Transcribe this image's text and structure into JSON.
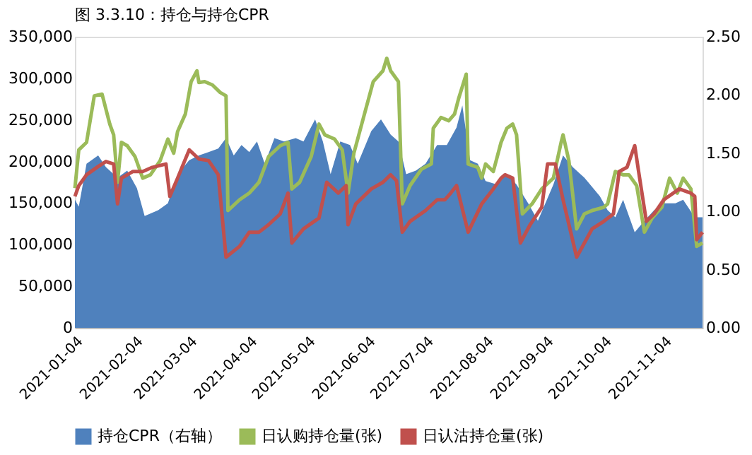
{
  "chart_data": {
    "type": "line",
    "title": "图 3.3.10：持仓与持仓CPR",
    "xlim": [
      "2021-01-04",
      "2021-11-24"
    ],
    "xticks": [
      "2021-01-04",
      "2021-02-04",
      "2021-03-04",
      "2021-04-04",
      "2021-05-04",
      "2021-06-04",
      "2021-07-04",
      "2021-08-04",
      "2021-09-04",
      "2021-10-04",
      "2021-11-04"
    ],
    "ylim": [
      0,
      350000
    ],
    "yticks": [
      0,
      {
        "value": 50000,
        "label": "50,000"
      },
      {
        "value": 100000,
        "label": "100,000"
      },
      {
        "value": 150000,
        "label": "150,000"
      },
      {
        "value": 200000,
        "label": "200,000"
      },
      {
        "value": 250000,
        "label": "250,000"
      },
      {
        "value": 300000,
        "label": "300,000"
      },
      {
        "value": 350000,
        "label": "350,000"
      }
    ],
    "y2lim": [
      0,
      2.5
    ],
    "y2ticks": [
      {
        "value": 0,
        "label": "0.00"
      },
      {
        "value": 0.5,
        "label": "0.50"
      },
      {
        "value": 1,
        "label": "1.00"
      },
      {
        "value": 1.5,
        "label": "1.50"
      },
      {
        "value": 2,
        "label": "2.00"
      },
      {
        "value": 2.5,
        "label": "2.50"
      }
    ],
    "grid": false,
    "legend": "bottom",
    "series": [
      {
        "name": "持仓CPR（右轴）",
        "type": "area",
        "axis": "y2",
        "color": "#4f81bd",
        "x": [
          "2021-01-04",
          "2021-01-06",
          "2021-01-10",
          "2021-01-16",
          "2021-01-20",
          "2021-01-26",
          "2021-01-31",
          "2021-02-05",
          "2021-02-09",
          "2021-02-16",
          "2021-02-21",
          "2021-02-26",
          "2021-03-04",
          "2021-03-09",
          "2021-03-14",
          "2021-03-19",
          "2021-03-23",
          "2021-03-27",
          "2021-03-31",
          "2021-04-04",
          "2021-04-08",
          "2021-04-12",
          "2021-04-17",
          "2021-04-22",
          "2021-04-28",
          "2021-05-02",
          "2021-05-08",
          "2021-05-12",
          "2021-05-16",
          "2021-05-21",
          "2021-05-26",
          "2021-05-30",
          "2021-06-06",
          "2021-06-11",
          "2021-06-16",
          "2021-06-20",
          "2021-06-24",
          "2021-06-29",
          "2021-07-04",
          "2021-07-10",
          "2021-07-15",
          "2021-07-20",
          "2021-07-23",
          "2021-07-27",
          "2021-07-31",
          "2021-08-04",
          "2021-08-10",
          "2021-08-15",
          "2021-08-20",
          "2021-08-26",
          "2021-08-31",
          "2021-09-08",
          "2021-09-13",
          "2021-09-18",
          "2021-09-24",
          "2021-10-02",
          "2021-10-06",
          "2021-10-10",
          "2021-10-14",
          "2021-10-20",
          "2021-10-25",
          "2021-10-30",
          "2021-11-04",
          "2021-11-10",
          "2021-11-14",
          "2021-11-20",
          "2021-11-24"
        ],
        "values": [
          1.1,
          1.04,
          1.41,
          1.48,
          1.38,
          1.29,
          1.35,
          1.2,
          0.96,
          1.01,
          1.07,
          1.32,
          1.44,
          1.48,
          1.51,
          1.54,
          1.63,
          1.48,
          1.57,
          1.51,
          1.6,
          1.41,
          1.63,
          1.6,
          1.63,
          1.6,
          1.79,
          1.6,
          1.32,
          1.6,
          1.57,
          1.41,
          1.69,
          1.79,
          1.66,
          1.6,
          1.32,
          1.35,
          1.41,
          1.57,
          1.57,
          1.72,
          1.91,
          1.44,
          1.41,
          1.26,
          1.23,
          1.32,
          1.23,
          1.07,
          0.92,
          1.23,
          1.48,
          1.38,
          1.29,
          1.13,
          1.01,
          0.95,
          1.1,
          0.82,
          0.92,
          1.01,
          1.07,
          1.07,
          1.1,
          0.95,
          0.95
        ]
      },
      {
        "name": "日认购持仓量(张)",
        "color": "#9bbb59",
        "x": [
          "2021-01-04",
          "2021-01-06",
          "2021-01-10",
          "2021-01-14",
          "2021-01-18",
          "2021-01-22",
          "2021-01-24",
          "2021-01-26",
          "2021-01-28",
          "2021-01-31",
          "2021-02-04",
          "2021-02-08",
          "2021-02-12",
          "2021-02-17",
          "2021-02-21",
          "2021-02-24",
          "2021-02-26",
          "2021-03-02",
          "2021-03-05",
          "2021-03-08",
          "2021-03-09",
          "2021-03-12",
          "2021-03-16",
          "2021-03-20",
          "2021-03-23",
          "2021-03-24",
          "2021-03-30",
          "2021-04-04",
          "2021-04-09",
          "2021-04-14",
          "2021-04-20",
          "2021-04-24",
          "2021-04-26",
          "2021-04-30",
          "2021-05-06",
          "2021-05-10",
          "2021-05-13",
          "2021-05-18",
          "2021-05-22",
          "2021-05-25",
          "2021-05-28",
          "2021-06-02",
          "2021-06-07",
          "2021-06-12",
          "2021-06-14",
          "2021-06-16",
          "2021-06-20",
          "2021-06-22",
          "2021-06-26",
          "2021-07-02",
          "2021-07-07",
          "2021-07-08",
          "2021-07-12",
          "2021-07-16",
          "2021-07-19",
          "2021-07-21",
          "2021-07-25",
          "2021-07-26",
          "2021-07-31",
          "2021-08-02",
          "2021-08-04",
          "2021-08-08",
          "2021-08-12",
          "2021-08-15",
          "2021-08-18",
          "2021-08-20",
          "2021-08-23",
          "2021-08-28",
          "2021-09-02",
          "2021-09-08",
          "2021-09-12",
          "2021-09-13",
          "2021-09-16",
          "2021-09-20",
          "2021-09-24",
          "2021-09-28",
          "2021-10-04",
          "2021-10-06",
          "2021-10-10",
          "2021-10-14",
          "2021-10-17",
          "2021-10-21",
          "2021-10-25",
          "2021-10-29",
          "2021-11-03",
          "2021-11-07",
          "2021-11-11",
          "2021-11-14",
          "2021-11-18",
          "2021-11-21",
          "2021-11-24"
        ],
        "values": [
          168000,
          214000,
          223000,
          279000,
          281000,
          245000,
          232000,
          175000,
          223000,
          219000,
          206000,
          180000,
          184000,
          201000,
          227000,
          210000,
          236000,
          257000,
          296000,
          309000,
          295000,
          296000,
          292000,
          283000,
          279000,
          141000,
          154000,
          162000,
          175000,
          206000,
          219000,
          223000,
          167000,
          175000,
          206000,
          245000,
          232000,
          227000,
          214000,
          162000,
          210000,
          253000,
          296000,
          309000,
          324000,
          309000,
          296000,
          149000,
          171000,
          191000,
          197000,
          240000,
          253000,
          249000,
          257000,
          275000,
          305000,
          197000,
          193000,
          180000,
          197000,
          188000,
          223000,
          240000,
          245000,
          232000,
          137000,
          149000,
          167000,
          180000,
          223000,
          232000,
          201000,
          119000,
          137000,
          141000,
          145000,
          149000,
          188000,
          184000,
          184000,
          171000,
          115000,
          132000,
          145000,
          180000,
          162000,
          180000,
          167000,
          98000,
          102000
        ]
      },
      {
        "name": "日认沽持仓量(张)",
        "color": "#c0504d",
        "x": [
          "2021-01-04",
          "2021-01-06",
          "2021-01-10",
          "2021-01-16",
          "2021-01-20",
          "2021-01-24",
          "2021-01-26",
          "2021-01-28",
          "2021-02-03",
          "2021-02-08",
          "2021-02-13",
          "2021-02-20",
          "2021-02-22",
          "2021-02-26",
          "2021-03-04",
          "2021-03-09",
          "2021-03-14",
          "2021-03-19",
          "2021-03-23",
          "2021-03-30",
          "2021-04-04",
          "2021-04-09",
          "2021-04-14",
          "2021-04-20",
          "2021-04-24",
          "2021-04-26",
          "2021-05-02",
          "2021-05-10",
          "2021-05-14",
          "2021-05-20",
          "2021-05-24",
          "2021-05-25",
          "2021-05-29",
          "2021-06-06",
          "2021-06-12",
          "2021-06-16",
          "2021-06-19",
          "2021-06-22",
          "2021-06-26",
          "2021-07-04",
          "2021-07-10",
          "2021-07-14",
          "2021-07-17",
          "2021-07-20",
          "2021-07-26",
          "2021-08-02",
          "2021-08-08",
          "2021-08-12",
          "2021-08-14",
          "2021-08-18",
          "2021-08-22",
          "2021-08-27",
          "2021-09-02",
          "2021-09-05",
          "2021-09-09",
          "2021-09-13",
          "2021-09-20",
          "2021-09-24",
          "2021-09-28",
          "2021-10-04",
          "2021-10-09",
          "2021-10-12",
          "2021-10-16",
          "2021-10-20",
          "2021-10-22",
          "2021-10-26",
          "2021-10-30",
          "2021-11-04",
          "2021-11-12",
          "2021-11-18",
          "2021-11-20",
          "2021-11-21",
          "2021-11-24"
        ],
        "values": [
          158000,
          171000,
          184000,
          194000,
          200000,
          197000,
          149000,
          180000,
          188000,
          188000,
          193000,
          197000,
          158000,
          180000,
          214000,
          203000,
          201000,
          184000,
          85000,
          98000,
          115000,
          115000,
          124000,
          137000,
          162000,
          102000,
          119000,
          132000,
          175000,
          162000,
          171000,
          124000,
          149000,
          167000,
          175000,
          184000,
          177000,
          115000,
          128000,
          141000,
          154000,
          154000,
          162000,
          171000,
          115000,
          149000,
          167000,
          180000,
          184000,
          180000,
          102000,
          124000,
          145000,
          197000,
          197000,
          154000,
          85000,
          102000,
          119000,
          128000,
          137000,
          188000,
          193000,
          219000,
          188000,
          128000,
          137000,
          154000,
          167000,
          162000,
          158000,
          106000,
          115000
        ]
      }
    ]
  }
}
